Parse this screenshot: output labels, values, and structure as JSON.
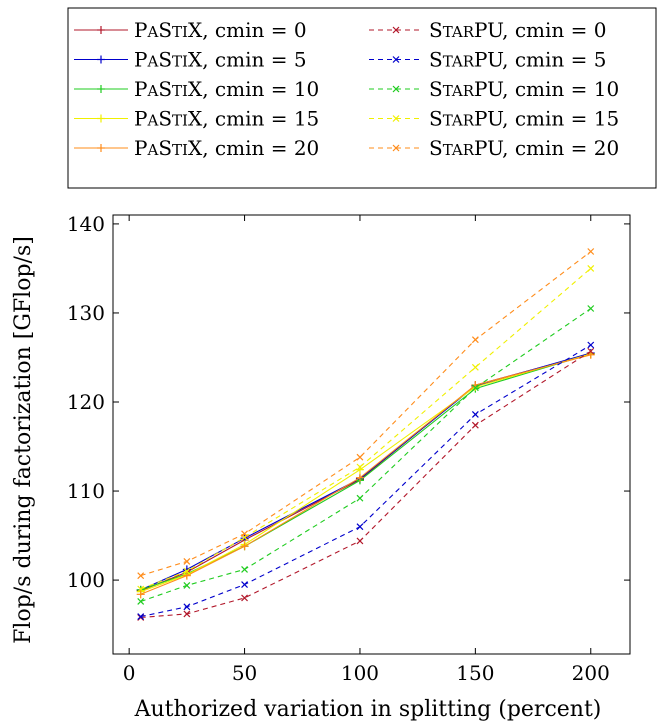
{
  "chart_data": {
    "type": "line",
    "title": "",
    "xlabel": "Authorized variation in splitting (percent)",
    "ylabel": "Flop/s during factorization [GFlop/s]",
    "xlim": [
      -7,
      217
    ],
    "ylim": [
      91.7,
      141
    ],
    "xticks": [
      0,
      50,
      100,
      150,
      200
    ],
    "yticks": [
      100,
      110,
      120,
      130,
      140
    ],
    "grid": false,
    "legend_position": "top, above plot, two columns",
    "x": [
      5,
      25,
      50,
      100,
      150,
      200
    ],
    "series": [
      {
        "name": "PaStiX, cmin = 0",
        "tool": "PaStiX",
        "cmin": 0,
        "color": "#b2182b",
        "dashed": false,
        "marker": "plus",
        "values": [
          98.8,
          100.9,
          104.5,
          111.3,
          121.9,
          125.4
        ]
      },
      {
        "name": "PaStiX, cmin = 5",
        "tool": "PaStiX",
        "cmin": 5,
        "color": "#0000cc",
        "dashed": false,
        "marker": "plus",
        "values": [
          98.9,
          101.2,
          104.7,
          111.4,
          121.8,
          125.5
        ]
      },
      {
        "name": "PaStiX, cmin = 10",
        "tool": "PaStiX",
        "cmin": 10,
        "color": "#1fcc1f",
        "dashed": false,
        "marker": "plus",
        "values": [
          98.9,
          100.7,
          103.8,
          111.2,
          121.5,
          125.4
        ]
      },
      {
        "name": "PaStiX, cmin = 15",
        "tool": "PaStiX",
        "cmin": 15,
        "color": "#f0f000",
        "dashed": false,
        "marker": "plus",
        "values": [
          98.7,
          100.6,
          104.0,
          112.4,
          121.7,
          125.4
        ]
      },
      {
        "name": "PaStiX, cmin = 20",
        "tool": "PaStiX",
        "cmin": 20,
        "color": "#ff8c1a",
        "dashed": false,
        "marker": "plus",
        "values": [
          98.4,
          100.5,
          103.8,
          111.5,
          121.9,
          125.3
        ]
      },
      {
        "name": "StarPU, cmin = 0",
        "tool": "StarPU",
        "cmin": 0,
        "color": "#b2182b",
        "dashed": true,
        "marker": "x",
        "values": [
          95.8,
          96.2,
          98.0,
          104.4,
          117.4,
          125.7
        ]
      },
      {
        "name": "StarPU, cmin = 5",
        "tool": "StarPU",
        "cmin": 5,
        "color": "#0000cc",
        "dashed": true,
        "marker": "x",
        "values": [
          95.9,
          97.0,
          99.5,
          106.0,
          118.6,
          126.4
        ]
      },
      {
        "name": "StarPU, cmin = 10",
        "tool": "StarPU",
        "cmin": 10,
        "color": "#1fcc1f",
        "dashed": true,
        "marker": "x",
        "values": [
          97.6,
          99.4,
          101.2,
          109.2,
          121.6,
          130.5
        ]
      },
      {
        "name": "StarPU, cmin = 15",
        "tool": "StarPU",
        "cmin": 15,
        "color": "#f0f000",
        "dashed": true,
        "marker": "x",
        "values": [
          99.0,
          101.0,
          104.8,
          112.7,
          123.9,
          135.0
        ]
      },
      {
        "name": "StarPU, cmin = 20",
        "tool": "StarPU",
        "cmin": 20,
        "color": "#ff8c1a",
        "dashed": true,
        "marker": "x",
        "values": [
          100.5,
          102.1,
          105.2,
          113.8,
          127.0,
          136.9
        ]
      }
    ]
  }
}
